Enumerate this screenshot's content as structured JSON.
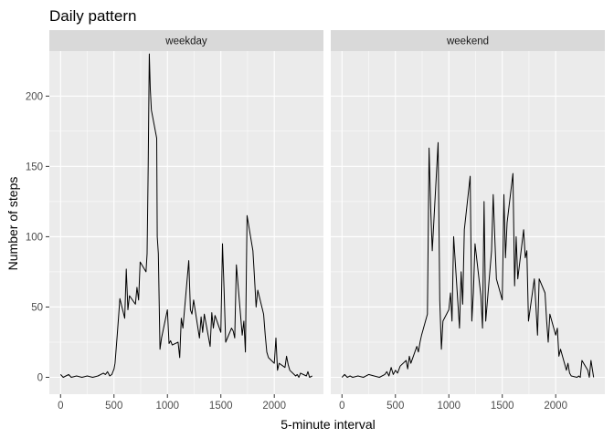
{
  "chart_data": {
    "type": "line",
    "title": "Daily pattern",
    "xlabel": "5-minute interval",
    "ylabel": "Number of steps",
    "xlim": [
      -105,
      2460
    ],
    "ylim": [
      -12,
      232
    ],
    "x_ticks": [
      0,
      500,
      1000,
      1500,
      2000
    ],
    "y_ticks": [
      0,
      50,
      100,
      150,
      200
    ],
    "x_tick_labels": [
      "0",
      "500",
      "1000",
      "1500",
      "2000"
    ],
    "y_tick_labels": [
      "0",
      "50",
      "100",
      "150",
      "200"
    ],
    "grid": true,
    "legend": "none",
    "line_color": "#000000",
    "panel_bg": "#ebebeb",
    "strip_bg": "#d9d9d9",
    "panels": [
      {
        "label": "weekday",
        "series": [
          {
            "x": [
              0,
              25,
              50,
              75,
              100,
              150,
              200,
              250,
              300,
              350,
              400,
              420,
              440,
              460,
              480,
              500,
              510,
              520,
              530,
              545,
              555,
              600,
              615,
              630,
              645,
              700,
              715,
              730,
              745,
              800,
              810,
              820,
              830,
              840,
              850,
              900,
              905,
              915,
              930,
              945,
              1000,
              1015,
              1030,
              1045,
              1100,
              1115,
              1130,
              1145,
              1200,
              1215,
              1230,
              1245,
              1300,
              1315,
              1330,
              1345,
              1400,
              1415,
              1430,
              1445,
              1500,
              1515,
              1530,
              1545,
              1600,
              1615,
              1630,
              1645,
              1700,
              1715,
              1730,
              1745,
              1800,
              1815,
              1830,
              1845,
              1900,
              1915,
              1930,
              1945,
              2000,
              2015,
              2030,
              2045,
              2100,
              2115,
              2130,
              2145,
              2200,
              2215,
              2230,
              2245,
              2300,
              2315,
              2330,
              2355
            ],
            "y": [
              2,
              0,
              1,
              2,
              0,
              1,
              0,
              1,
              0,
              1,
              3,
              2,
              4,
              1,
              2,
              6,
              10,
              20,
              30,
              45,
              56,
              42,
              77,
              48,
              58,
              52,
              64,
              55,
              82,
              75,
              88,
              150,
              230,
              205,
              190,
              170,
              100,
              88,
              20,
              28,
              48,
              24,
              26,
              23,
              25,
              14,
              42,
              35,
              83,
              48,
              45,
              55,
              28,
              43,
              32,
              45,
              22,
              46,
              35,
              44,
              32,
              95,
              63,
              25,
              35,
              33,
              28,
              80,
              30,
              40,
              18,
              115,
              90,
              70,
              50,
              62,
              45,
              30,
              18,
              14,
              10,
              28,
              5,
              10,
              7,
              15,
              9,
              5,
              1,
              2,
              0,
              3,
              1,
              4,
              0,
              1
            ]
          }
        ]
      },
      {
        "label": "weekend",
        "series": [
          {
            "x": [
              0,
              25,
              50,
              75,
              100,
              150,
              200,
              250,
              300,
              350,
              400,
              420,
              440,
              460,
              480,
              500,
              520,
              545,
              600,
              615,
              630,
              645,
              700,
              715,
              730,
              745,
              800,
              815,
              830,
              845,
              900,
              915,
              930,
              945,
              1000,
              1015,
              1030,
              1045,
              1100,
              1115,
              1130,
              1145,
              1200,
              1215,
              1230,
              1245,
              1300,
              1315,
              1330,
              1345,
              1400,
              1415,
              1430,
              1445,
              1500,
              1515,
              1530,
              1545,
              1600,
              1615,
              1630,
              1645,
              1700,
              1715,
              1730,
              1745,
              1800,
              1815,
              1830,
              1845,
              1900,
              1915,
              1930,
              1945,
              2000,
              2015,
              2030,
              2045,
              2100,
              2115,
              2130,
              2145,
              2200,
              2215,
              2230,
              2245,
              2300,
              2315,
              2330,
              2355
            ],
            "y": [
              0,
              2,
              0,
              1,
              0,
              1,
              0,
              2,
              1,
              0,
              2,
              4,
              1,
              7,
              2,
              5,
              3,
              8,
              12,
              6,
              15,
              10,
              22,
              18,
              25,
              30,
              45,
              163,
              120,
              90,
              167,
              55,
              20,
              40,
              48,
              60,
              40,
              100,
              35,
              75,
              52,
              105,
              143,
              40,
              60,
              95,
              58,
              35,
              125,
              40,
              90,
              130,
              100,
              70,
              55,
              130,
              85,
              110,
              145,
              65,
              100,
              70,
              105,
              85,
              90,
              40,
              70,
              50,
              30,
              70,
              60,
              40,
              25,
              45,
              30,
              35,
              15,
              20,
              5,
              10,
              3,
              1,
              0,
              1,
              0,
              12,
              5,
              0,
              12,
              0
            ]
          }
        ]
      }
    ]
  }
}
